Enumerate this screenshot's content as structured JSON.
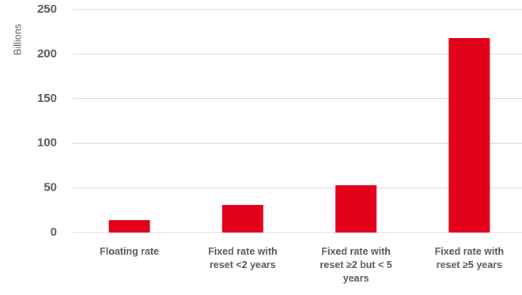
{
  "chart_data": {
    "type": "bar",
    "categories": [
      [
        "Floating rate"
      ],
      [
        "Fixed rate with",
        "reset <2 years"
      ],
      [
        "Fixed rate with",
        "reset  ≥2 but < 5",
        "years"
      ],
      [
        "Fixed rate with",
        "reset ≥5 years"
      ]
    ],
    "values": [
      14,
      31,
      53,
      218
    ],
    "ylabel": "Billions",
    "ylim": [
      0,
      250
    ],
    "yticks": [
      0,
      50,
      100,
      150,
      200,
      250
    ],
    "grid": true,
    "bar_color": "#E2001A"
  }
}
